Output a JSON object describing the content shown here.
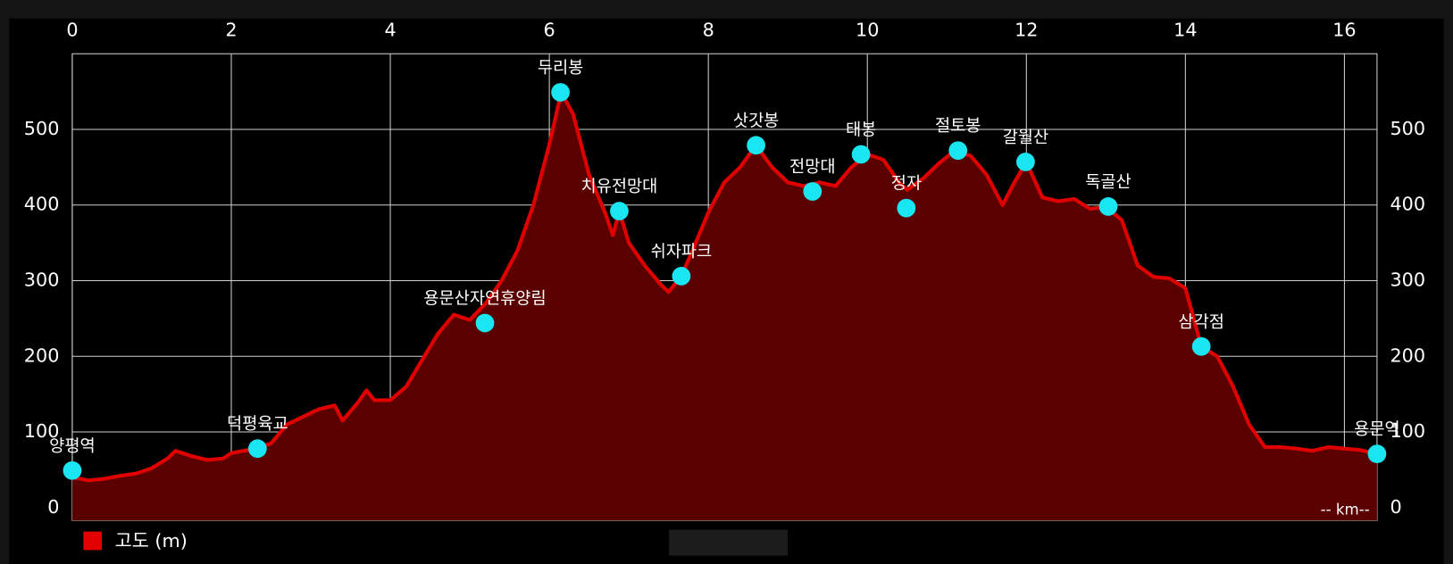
{
  "chart_data": {
    "type": "area",
    "x": [
      0,
      0.2,
      0.4,
      0.6,
      0.8,
      1.0,
      1.2,
      1.3,
      1.5,
      1.7,
      1.9,
      2.0,
      2.3,
      2.5,
      2.7,
      2.9,
      3.1,
      3.3,
      3.4,
      3.6,
      3.7,
      3.8,
      4.0,
      4.2,
      4.4,
      4.6,
      4.8,
      5.0,
      5.2,
      5.4,
      5.6,
      5.8,
      6.0,
      6.15,
      6.3,
      6.5,
      6.7,
      6.8,
      6.88,
      7.0,
      7.2,
      7.4,
      7.5,
      7.66,
      7.8,
      8.0,
      8.2,
      8.4,
      8.6,
      8.8,
      9.0,
      9.2,
      9.4,
      9.6,
      9.8,
      10.0,
      10.2,
      10.4,
      10.5,
      10.7,
      10.9,
      11.1,
      11.3,
      11.5,
      11.7,
      11.85,
      12.0,
      12.2,
      12.4,
      12.6,
      12.8,
      13.0,
      13.2,
      13.4,
      13.6,
      13.8,
      14.0,
      14.2,
      14.4,
      14.6,
      14.8,
      15.0,
      15.2,
      15.4,
      15.6,
      15.8,
      16.0,
      16.2,
      16.41
    ],
    "series": [
      {
        "name": "고도 (m)",
        "color": "#e00000",
        "fill": "#5a0000",
        "values": [
          40,
          36,
          38,
          42,
          45,
          52,
          65,
          75,
          68,
          63,
          65,
          72,
          78,
          85,
          110,
          120,
          130,
          135,
          115,
          140,
          155,
          142,
          142,
          160,
          195,
          230,
          255,
          248,
          270,
          300,
          340,
          400,
          480,
          549,
          520,
          440,
          390,
          360,
          392,
          350,
          320,
          295,
          285,
          306,
          340,
          390,
          430,
          450,
          479,
          450,
          430,
          425,
          430,
          425,
          450,
          467,
          460,
          430,
          420,
          435,
          455,
          472,
          465,
          440,
          400,
          430,
          457,
          410,
          405,
          408,
          395,
          398,
          380,
          320,
          305,
          303,
          290,
          213,
          200,
          160,
          110,
          80,
          80,
          78,
          75,
          80,
          78,
          76,
          71
        ]
      }
    ],
    "annotations": [
      {
        "label": "양평역",
        "x": 0,
        "y": 49
      },
      {
        "label": "덕평육교",
        "x": 2.33,
        "y": 78
      },
      {
        "label": "용문산자연휴양림",
        "x": 5.19,
        "y": 244
      },
      {
        "label": "두리봉",
        "x": 6.14,
        "y": 549
      },
      {
        "label": "치유전망대",
        "x": 6.88,
        "y": 392
      },
      {
        "label": "쉬자파크",
        "x": 7.66,
        "y": 306
      },
      {
        "label": "삿갓봉",
        "x": 8.6,
        "y": 479
      },
      {
        "label": "전망대",
        "x": 9.31,
        "y": 418
      },
      {
        "label": "태봉",
        "x": 9.92,
        "y": 467
      },
      {
        "label": "정자",
        "x": 10.49,
        "y": 396
      },
      {
        "label": "절토봉",
        "x": 11.14,
        "y": 472
      },
      {
        "label": "갈월산",
        "x": 11.99,
        "y": 457
      },
      {
        "label": "독골산",
        "x": 13.03,
        "y": 398
      },
      {
        "label": "삼각점",
        "x": 14.2,
        "y": 213
      },
      {
        "label": "용문역",
        "x": 16.41,
        "y": 71
      }
    ],
    "annotation_color": "#19e6f0",
    "xlabel": "-- km--",
    "xlim": [
      0,
      16.41
    ],
    "xticks": [
      0,
      2,
      4,
      6,
      8,
      10,
      12,
      14,
      16
    ],
    "ylim": [
      -17,
      600
    ],
    "yticks": [
      0,
      100,
      200,
      300,
      400,
      500
    ],
    "y2lim": [
      -17,
      600
    ],
    "y2ticks": [
      0,
      100,
      200,
      300,
      400,
      500
    ],
    "grid": true,
    "legend": "bottom-left"
  }
}
